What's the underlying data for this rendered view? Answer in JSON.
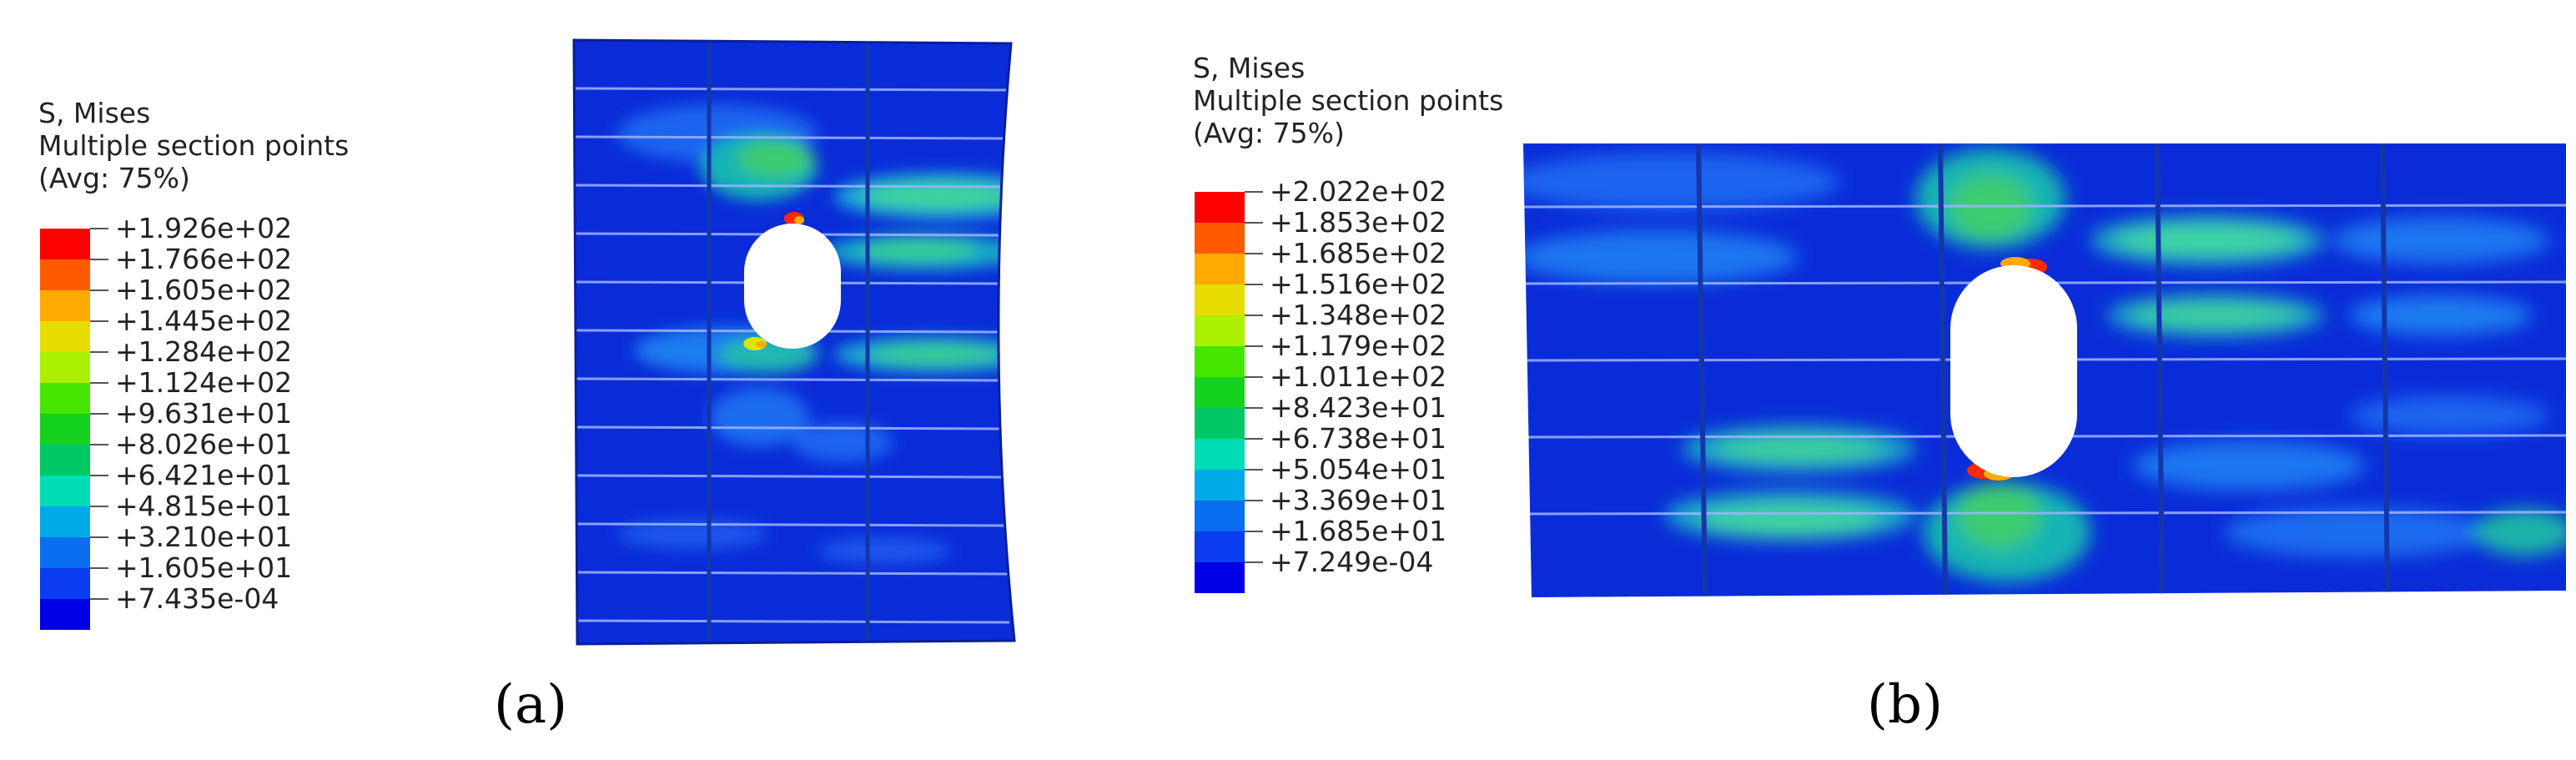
{
  "panels": [
    {
      "id": "a",
      "caption": "(a)",
      "legend": {
        "lines": [
          "S, Mises",
          "Multiple section points",
          "(Avg: 75%)"
        ],
        "values": [
          "+1.926e+02",
          "+1.766e+02",
          "+1.605e+02",
          "+1.445e+02",
          "+1.284e+02",
          "+1.124e+02",
          "+9.631e+01",
          "+8.026e+01",
          "+6.421e+01",
          "+4.815e+01",
          "+3.210e+01",
          "+1.605e+01",
          "+7.435e-04"
        ]
      }
    },
    {
      "id": "b",
      "caption": "(b)",
      "legend": {
        "lines": [
          "S, Mises",
          "Multiple section points",
          "(Avg: 75%)"
        ],
        "values": [
          "+2.022e+02",
          "+1.853e+02",
          "+1.685e+02",
          "+1.516e+02",
          "+1.348e+02",
          "+1.179e+02",
          "+1.011e+02",
          "+8.423e+01",
          "+6.738e+01",
          "+5.054e+01",
          "+3.369e+01",
          "+1.685e+01",
          "+7.249e-04"
        ]
      }
    }
  ],
  "colorbar": [
    "#ff0000",
    "#ff5a00",
    "#ffaa00",
    "#e6dc00",
    "#aaf000",
    "#46e600",
    "#14d21e",
    "#00c864",
    "#00dcb4",
    "#00aae6",
    "#0a6ef0",
    "#0a3cf0",
    "#0000e6"
  ]
}
